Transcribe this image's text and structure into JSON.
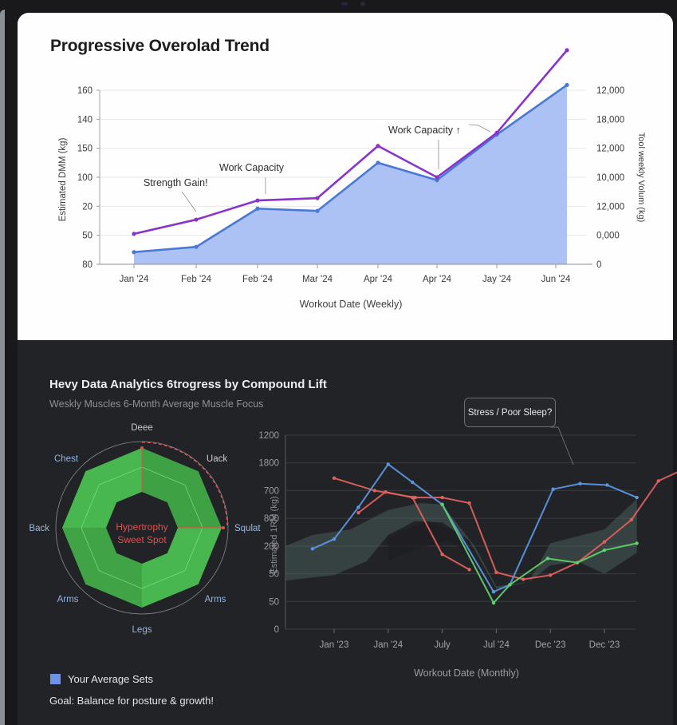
{
  "top_chart": {
    "title": "Progressive Overolad Trend",
    "xlabel": "Workout Date (Weekly)",
    "ylabel_left": "Estimated DMM (kg)",
    "ylabel_right": "Tool weekly Volum (kg)",
    "annotations": [
      "Strength Gain!",
      "Work Capacity",
      "Work Capacity ↑"
    ]
  },
  "bottom": {
    "heading": "Hevy Data Analytics 6trogress by Compound Lift",
    "subheading": "Weskly Muscles 6-Month Average Muscle Focus",
    "radar_center_label_1": "Hypertrophy",
    "radar_center_label_2": "Sweet Spot",
    "tooltip": "Stress / Poor Sleep?",
    "line_xlabel": "Workout Date (Monthly)",
    "line_ylabel": "Estimated 1RM (kg)",
    "legend_label": "Your Average Sets",
    "goal_text": "Goal: Balance for posture & growth!"
  },
  "colors": {
    "area_fill": "#a9bff3",
    "blue_line": "#4a78d6",
    "purple_line": "#8a33c9",
    "radar_green": "#4cc452",
    "radar_accent": "#e2514f",
    "line_red": "#e0605c",
    "line_blue": "#5b96e0",
    "line_green": "#5fd06a"
  },
  "chart_data": [
    {
      "type": "area",
      "title": "Progressive Overolad Trend",
      "xlabel": "Workout Date (Weekly)",
      "ylabel": "Estimated DMM (kg)",
      "ylabel_right": "Tool weekly Volum (kg)",
      "categories": [
        "Jan '24",
        "Feb '24",
        "Feb '24",
        "Mar '24",
        "Apr '24",
        "Apr '24",
        "Jay '24",
        "Jun '24"
      ],
      "y_ticks_left": [
        "80",
        "50",
        "20",
        "100",
        "150",
        "140",
        "160"
      ],
      "y_ticks_right": [
        "0",
        "0,000",
        "12,000",
        "10,000",
        "12,000",
        "18,000",
        "12,000"
      ],
      "note": "values in tick-index units (0 = bottom tick, 6 = top tick)",
      "series": [
        {
          "name": "Estimated 1RM (area)",
          "values": [
            0.42,
            0.6,
            1.92,
            1.84,
            3.5,
            2.9,
            4.47,
            6.18
          ]
        },
        {
          "name": "Total Weekly Volume",
          "values": [
            1.05,
            1.54,
            2.2,
            2.28,
            4.08,
            3.0,
            4.53,
            7.38
          ]
        }
      ],
      "last_point_offset": 0.6,
      "annotations": [
        {
          "text": "Strength Gain!",
          "target_index": 1
        },
        {
          "text": "Work Capacity",
          "target_index": 2
        },
        {
          "text": "Work Capacity ↑",
          "target_index": 5
        }
      ],
      "grid": true
    },
    {
      "type": "radar",
      "axes": [
        "Deee",
        "Uack",
        "Squlat",
        "Arms",
        "Legs",
        "Arms",
        "Back",
        "Chest"
      ],
      "series": [
        {
          "name": "Your Average Sets",
          "values": [
            1.0,
            1.0,
            1.0,
            1.0,
            1.0,
            1.0,
            1.0,
            1.0
          ]
        }
      ],
      "inner_ring": 0.45,
      "highlight": "Hypertrophy Sweet Spot"
    },
    {
      "type": "line",
      "xlabel": "Workout Date (Monthly)",
      "ylabel": "Estimated 1RM (kg)",
      "categories": [
        "Jan '23",
        "Jan '24",
        "July",
        "Jul '24",
        "Dec '23",
        "Dec '23"
      ],
      "y_ticks": [
        "0",
        "50",
        "50",
        "200",
        "800",
        "700",
        "1800",
        "1200"
      ],
      "note": "values in tick-index units (0 = bottom, 7 = top); x in category-index units",
      "series": [
        {
          "name": "Red A",
          "points": [
            [
              0,
              5.45
            ],
            [
              0.75,
              5.0
            ],
            [
              1.5,
              4.75
            ],
            [
              2.0,
              4.75
            ],
            [
              2.5,
              4.55
            ],
            [
              3.0,
              2.05
            ],
            [
              3.5,
              1.8
            ],
            [
              4.0,
              1.95
            ],
            [
              4.5,
              2.4
            ],
            [
              5.0,
              3.15
            ],
            [
              5.5,
              3.95
            ],
            [
              6.0,
              5.35
            ],
            [
              6.5,
              5.8
            ],
            [
              7.0,
              6.7
            ]
          ]
        },
        {
          "name": "Red B",
          "points": [
            [
              0.45,
              4.2
            ],
            [
              0.95,
              4.95
            ],
            [
              1.45,
              4.75
            ],
            [
              2.0,
              2.7
            ],
            [
              2.5,
              2.15
            ]
          ]
        },
        {
          "name": "Blue",
          "points": [
            [
              -0.4,
              2.9
            ],
            [
              0.0,
              3.25
            ],
            [
              0.45,
              4.4
            ],
            [
              1.0,
              5.95
            ],
            [
              1.45,
              5.3
            ],
            [
              2.0,
              4.5
            ],
            [
              2.95,
              1.35
            ],
            [
              3.25,
              1.6
            ],
            [
              4.05,
              5.05
            ],
            [
              4.55,
              5.25
            ],
            [
              5.05,
              5.2
            ],
            [
              5.6,
              4.75
            ]
          ]
        },
        {
          "name": "Green",
          "points": [
            [
              2.0,
              4.5
            ],
            [
              2.95,
              0.95
            ],
            [
              3.25,
              1.6
            ],
            [
              3.95,
              2.55
            ],
            [
              4.5,
              2.4
            ],
            [
              5.0,
              2.85
            ],
            [
              5.6,
              3.1
            ]
          ]
        }
      ],
      "band": true,
      "annotation": "Stress / Poor Sleep?",
      "grid": true
    }
  ]
}
